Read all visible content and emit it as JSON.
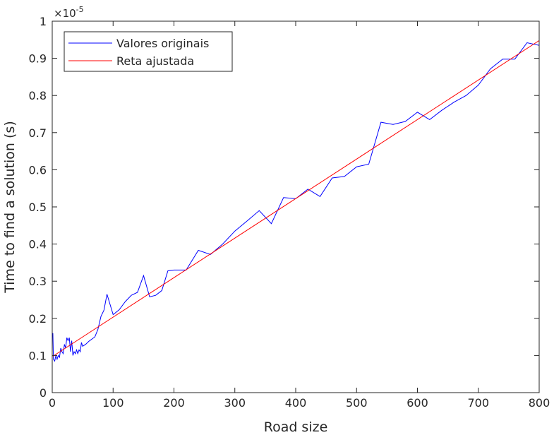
{
  "chart_data": {
    "type": "line",
    "xlabel": "Road size",
    "ylabel": "Time to find a solution (s)",
    "exponent_label": "×10",
    "exponent_value": "-5",
    "xlim": [
      0,
      800
    ],
    "ylim": [
      0,
      1
    ],
    "xticks": [
      "0",
      "100",
      "200",
      "300",
      "400",
      "500",
      "600",
      "700",
      "800"
    ],
    "yticks": [
      "0",
      "0.1",
      "0.2",
      "0.3",
      "0.4",
      "0.5",
      "0.6",
      "0.7",
      "0.8",
      "0.9",
      "1"
    ],
    "legend_position": "top-left",
    "grid": false,
    "series": [
      {
        "name": "Valores originais",
        "color": "#0000ff",
        "points": [
          [
            1,
            0.16
          ],
          [
            2,
            0.09
          ],
          [
            4,
            0.085
          ],
          [
            6,
            0.1
          ],
          [
            8,
            0.09
          ],
          [
            10,
            0.1
          ],
          [
            12,
            0.095
          ],
          [
            14,
            0.12
          ],
          [
            16,
            0.11
          ],
          [
            18,
            0.105
          ],
          [
            20,
            0.13
          ],
          [
            22,
            0.12
          ],
          [
            24,
            0.148
          ],
          [
            26,
            0.14
          ],
          [
            28,
            0.148
          ],
          [
            30,
            0.11
          ],
          [
            32,
            0.14
          ],
          [
            34,
            0.1
          ],
          [
            36,
            0.11
          ],
          [
            38,
            0.105
          ],
          [
            40,
            0.115
          ],
          [
            42,
            0.105
          ],
          [
            44,
            0.115
          ],
          [
            46,
            0.11
          ],
          [
            48,
            0.135
          ],
          [
            50,
            0.125
          ],
          [
            55,
            0.13
          ],
          [
            60,
            0.138
          ],
          [
            70,
            0.15
          ],
          [
            75,
            0.17
          ],
          [
            80,
            0.205
          ],
          [
            85,
            0.222
          ],
          [
            90,
            0.265
          ],
          [
            100,
            0.21
          ],
          [
            110,
            0.223
          ],
          [
            120,
            0.245
          ],
          [
            130,
            0.262
          ],
          [
            140,
            0.27
          ],
          [
            150,
            0.315
          ],
          [
            160,
            0.258
          ],
          [
            170,
            0.262
          ],
          [
            180,
            0.275
          ],
          [
            190,
            0.328
          ],
          [
            200,
            0.33
          ],
          [
            220,
            0.33
          ],
          [
            240,
            0.383
          ],
          [
            260,
            0.372
          ],
          [
            280,
            0.4
          ],
          [
            300,
            0.435
          ],
          [
            320,
            0.462
          ],
          [
            340,
            0.49
          ],
          [
            360,
            0.455
          ],
          [
            380,
            0.525
          ],
          [
            400,
            0.522
          ],
          [
            420,
            0.548
          ],
          [
            440,
            0.528
          ],
          [
            460,
            0.578
          ],
          [
            480,
            0.582
          ],
          [
            500,
            0.608
          ],
          [
            520,
            0.615
          ],
          [
            540,
            0.728
          ],
          [
            560,
            0.722
          ],
          [
            580,
            0.73
          ],
          [
            600,
            0.755
          ],
          [
            620,
            0.735
          ],
          [
            640,
            0.76
          ],
          [
            660,
            0.782
          ],
          [
            680,
            0.8
          ],
          [
            700,
            0.828
          ],
          [
            720,
            0.872
          ],
          [
            740,
            0.898
          ],
          [
            760,
            0.898
          ],
          [
            780,
            0.942
          ],
          [
            800,
            0.935
          ]
        ]
      },
      {
        "name": "Reta ajustada",
        "color": "#ff0000",
        "points": [
          [
            1,
            0.098
          ],
          [
            800,
            0.948
          ]
        ]
      }
    ]
  }
}
